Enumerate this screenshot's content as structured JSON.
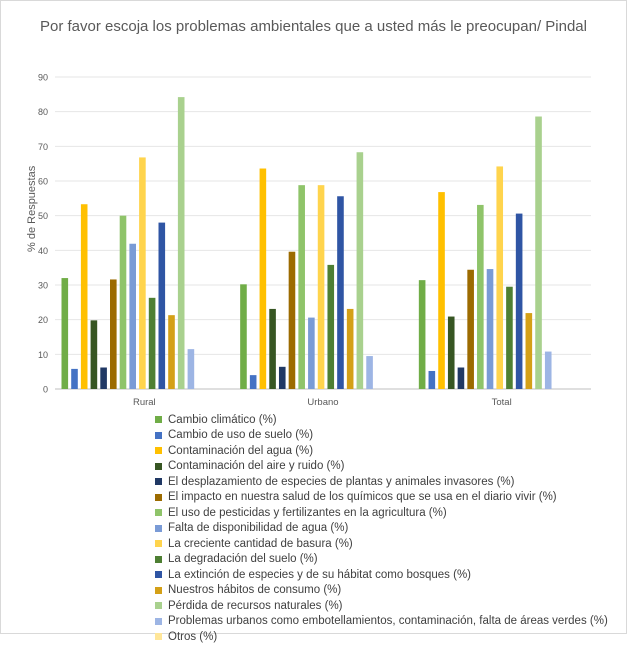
{
  "chart_data": {
    "type": "bar",
    "title": "Por favor escoja los problemas ambientales que a usted más le preocupan/ Pindal",
    "ylabel": "% de Respuestas",
    "xlabel": "",
    "ylim": [
      0,
      90
    ],
    "yticks": [
      "0",
      "10",
      "20",
      "30",
      "40",
      "50",
      "60",
      "70",
      "80",
      "90"
    ],
    "grid": true,
    "legend_position": "bottom",
    "categories": [
      "Rural",
      "Urbano",
      "Total"
    ],
    "series": [
      {
        "name": "Cambio climático (%)",
        "color": "#70ad47",
        "values": [
          32,
          30.2,
          31.4
        ]
      },
      {
        "name": "Cambio de uso de suelo (%)",
        "color": "#4472c4",
        "values": [
          5.8,
          4,
          5.2
        ]
      },
      {
        "name": "Contaminación del agua (%)",
        "color": "#ffc000",
        "values": [
          53.3,
          63.6,
          56.8
        ]
      },
      {
        "name": "Contaminación del aire y ruido (%)",
        "color": "#375623",
        "values": [
          19.8,
          23.1,
          20.9
        ]
      },
      {
        "name": "El desplazamiento de especies de plantas y animales invasores (%)",
        "color": "#203864",
        "values": [
          6.2,
          6.4,
          6.2
        ]
      },
      {
        "name": "El impacto en nuestra salud de los químicos que se usa en el diario vivir (%)",
        "color": "#9c6b00",
        "values": [
          31.6,
          39.6,
          34.4
        ]
      },
      {
        "name": "El uso de pesticidas y fertilizantes en la agricultura (%)",
        "color": "#8fc46a",
        "values": [
          50,
          58.8,
          53.1
        ]
      },
      {
        "name": "Falta de disponibilidad de agua (%)",
        "color": "#7a9bd6",
        "values": [
          41.9,
          20.6,
          34.6
        ]
      },
      {
        "name": "La creciente cantidad de basura (%)",
        "color": "#ffd44d",
        "values": [
          66.8,
          58.8,
          64.2
        ]
      },
      {
        "name": "La degradación del suelo (%)",
        "color": "#4e7f33",
        "values": [
          26.3,
          35.8,
          29.5
        ]
      },
      {
        "name": "La extinción de especies y de su hábitat como bosques (%)",
        "color": "#2f55a4",
        "values": [
          48,
          55.6,
          50.6
        ]
      },
      {
        "name": "Nuestros hábitos de consumo (%)",
        "color": "#d4a017",
        "values": [
          21.3,
          23.1,
          21.9
        ]
      },
      {
        "name": "Pérdida de recursos naturales (%)",
        "color": "#a9d18e",
        "values": [
          84.2,
          68.3,
          78.6
        ]
      },
      {
        "name": "Problemas urbanos como embotellamientos, contaminación, falta de áreas verdes (%)",
        "color": "#9db5e4",
        "values": [
          11.5,
          9.5,
          10.8
        ]
      },
      {
        "name": "Otros (%)",
        "color": "#ffe699",
        "values": [
          0,
          0,
          0
        ]
      }
    ]
  }
}
